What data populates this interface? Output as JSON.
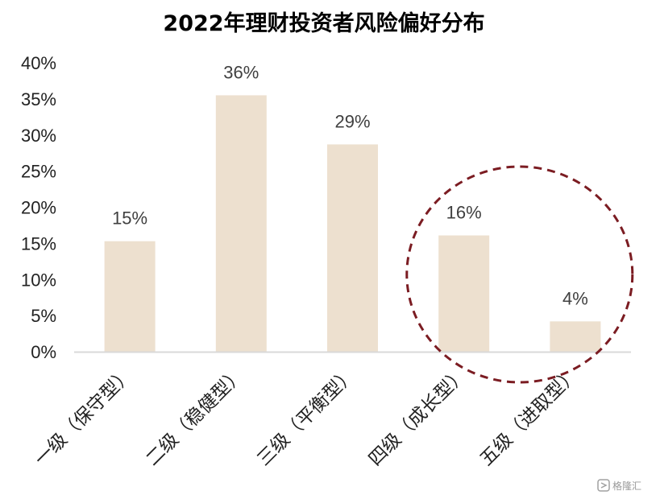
{
  "chart_data": {
    "type": "bar",
    "title": "2022年理财投资者风险偏好分布",
    "categories": [
      "一级（保守型）",
      "二级（稳健型）",
      "三级（平衡型）",
      "四级（成长型）",
      "五级（进取型）"
    ],
    "values": [
      15.3,
      35.5,
      28.7,
      16.1,
      4.2
    ],
    "data_labels": [
      "15%",
      "36%",
      "29%",
      "16%",
      "4%"
    ],
    "ylim": [
      0,
      40
    ],
    "yticks": [
      "0%",
      "5%",
      "10%",
      "15%",
      "20%",
      "25%",
      "30%",
      "35%",
      "40%"
    ],
    "xlabel": "",
    "ylabel": "",
    "grid": false,
    "colors": {
      "bar": "#ede0cf",
      "axis": "#d9d9d9",
      "highlight_circle": "#7b1c22"
    },
    "annotation": {
      "shape": "dashed-circle",
      "highlights_categories": [
        "四级（成长型）",
        "五级（进取型）"
      ]
    }
  },
  "watermark": {
    "text": "格隆汇",
    "icon": "gelonghui-logo-icon"
  }
}
